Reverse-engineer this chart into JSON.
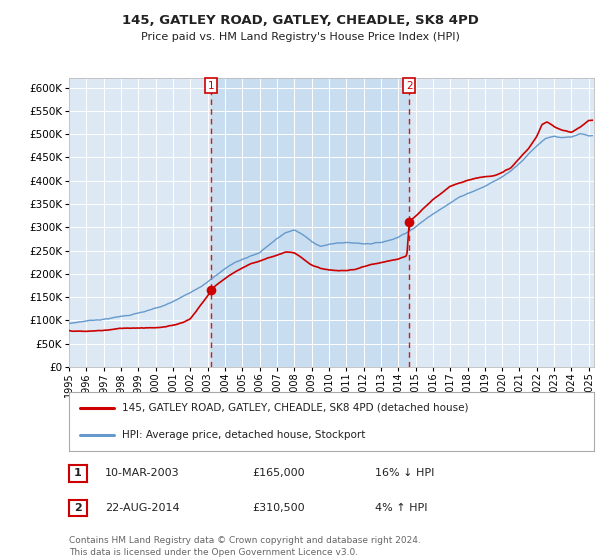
{
  "title": "145, GATLEY ROAD, GATLEY, CHEADLE, SK8 4PD",
  "subtitle": "Price paid vs. HM Land Registry's House Price Index (HPI)",
  "background_color": "#ffffff",
  "plot_bg_color": "#dce9f5",
  "grid_color": "#ffffff",
  "purchase1_year": 2003.19,
  "purchase1_price": 165000,
  "purchase2_year": 2014.64,
  "purchase2_price": 310500,
  "legend_line1": "145, GATLEY ROAD, GATLEY, CHEADLE, SK8 4PD (detached house)",
  "legend_line2": "HPI: Average price, detached house, Stockport",
  "table_row1": [
    "1",
    "10-MAR-2003",
    "£165,000",
    "16% ↓ HPI"
  ],
  "table_row2": [
    "2",
    "22-AUG-2014",
    "£310,500",
    "4% ↑ HPI"
  ],
  "footnote": "Contains HM Land Registry data © Crown copyright and database right 2024.\nThis data is licensed under the Open Government Licence v3.0.",
  "ylim": [
    0,
    620000
  ],
  "yticks": [
    0,
    50000,
    100000,
    150000,
    200000,
    250000,
    300000,
    350000,
    400000,
    450000,
    500000,
    550000,
    600000
  ],
  "red_line_color": "#cc0000",
  "blue_line_color": "#6699cc",
  "marker_color": "#cc0000",
  "hpi_keypoints_years": [
    1995.0,
    1995.5,
    1996.0,
    1996.5,
    1997.0,
    1997.5,
    1998.0,
    1998.5,
    1999.0,
    1999.5,
    2000.0,
    2000.5,
    2001.0,
    2001.5,
    2002.0,
    2002.5,
    2003.0,
    2003.5,
    2004.0,
    2004.5,
    2005.0,
    2005.5,
    2006.0,
    2006.5,
    2007.0,
    2007.5,
    2008.0,
    2008.5,
    2009.0,
    2009.5,
    2010.0,
    2010.5,
    2011.0,
    2011.5,
    2012.0,
    2012.5,
    2013.0,
    2013.5,
    2014.0,
    2014.5,
    2015.0,
    2015.5,
    2016.0,
    2016.5,
    2017.0,
    2017.5,
    2018.0,
    2018.5,
    2019.0,
    2019.5,
    2020.0,
    2020.5,
    2021.0,
    2021.5,
    2022.0,
    2022.5,
    2023.0,
    2023.5,
    2024.0,
    2024.5,
    2025.0
  ],
  "hpi_keypoints_vals": [
    93000,
    96000,
    99000,
    101000,
    103000,
    106000,
    109000,
    112000,
    116000,
    120000,
    125000,
    130000,
    138000,
    147000,
    158000,
    170000,
    182000,
    196000,
    210000,
    222000,
    230000,
    238000,
    245000,
    260000,
    274000,
    287000,
    293000,
    282000,
    267000,
    258000,
    261000,
    264000,
    265000,
    264000,
    263000,
    264000,
    266000,
    271000,
    278000,
    289000,
    301000,
    315000,
    328000,
    342000,
    354000,
    365000,
    374000,
    382000,
    390000,
    400000,
    410000,
    423000,
    440000,
    460000,
    478000,
    495000,
    500000,
    497000,
    497000,
    503000,
    497000
  ],
  "red_keypoints_years": [
    1995.0,
    1995.5,
    1996.0,
    1996.5,
    1997.0,
    1997.5,
    1998.0,
    1998.5,
    1999.0,
    1999.5,
    2000.0,
    2000.5,
    2001.0,
    2001.5,
    2002.0,
    2002.5,
    2003.0,
    2003.19,
    2003.5,
    2004.0,
    2004.5,
    2005.0,
    2005.5,
    2006.0,
    2006.5,
    2007.0,
    2007.5,
    2008.0,
    2008.5,
    2009.0,
    2009.5,
    2010.0,
    2010.5,
    2011.0,
    2011.5,
    2012.0,
    2012.5,
    2013.0,
    2013.5,
    2014.0,
    2014.5,
    2014.64,
    2015.0,
    2015.5,
    2016.0,
    2016.5,
    2017.0,
    2017.5,
    2018.0,
    2018.5,
    2019.0,
    2019.5,
    2020.0,
    2020.5,
    2021.0,
    2021.5,
    2022.0,
    2022.3,
    2022.6,
    2023.0,
    2023.5,
    2024.0,
    2024.5,
    2025.0
  ],
  "red_keypoints_vals": [
    78000,
    77000,
    76000,
    77000,
    78000,
    80000,
    82000,
    83000,
    84000,
    85000,
    86000,
    87000,
    90000,
    96000,
    105000,
    130000,
    155000,
    165000,
    178000,
    192000,
    205000,
    215000,
    225000,
    230000,
    238000,
    244000,
    250000,
    248000,
    235000,
    222000,
    215000,
    212000,
    210000,
    210000,
    212000,
    218000,
    222000,
    225000,
    228000,
    232000,
    238000,
    310500,
    322000,
    340000,
    358000,
    372000,
    385000,
    393000,
    400000,
    405000,
    408000,
    412000,
    418000,
    428000,
    448000,
    468000,
    495000,
    520000,
    525000,
    515000,
    508000,
    505000,
    515000,
    530000
  ]
}
